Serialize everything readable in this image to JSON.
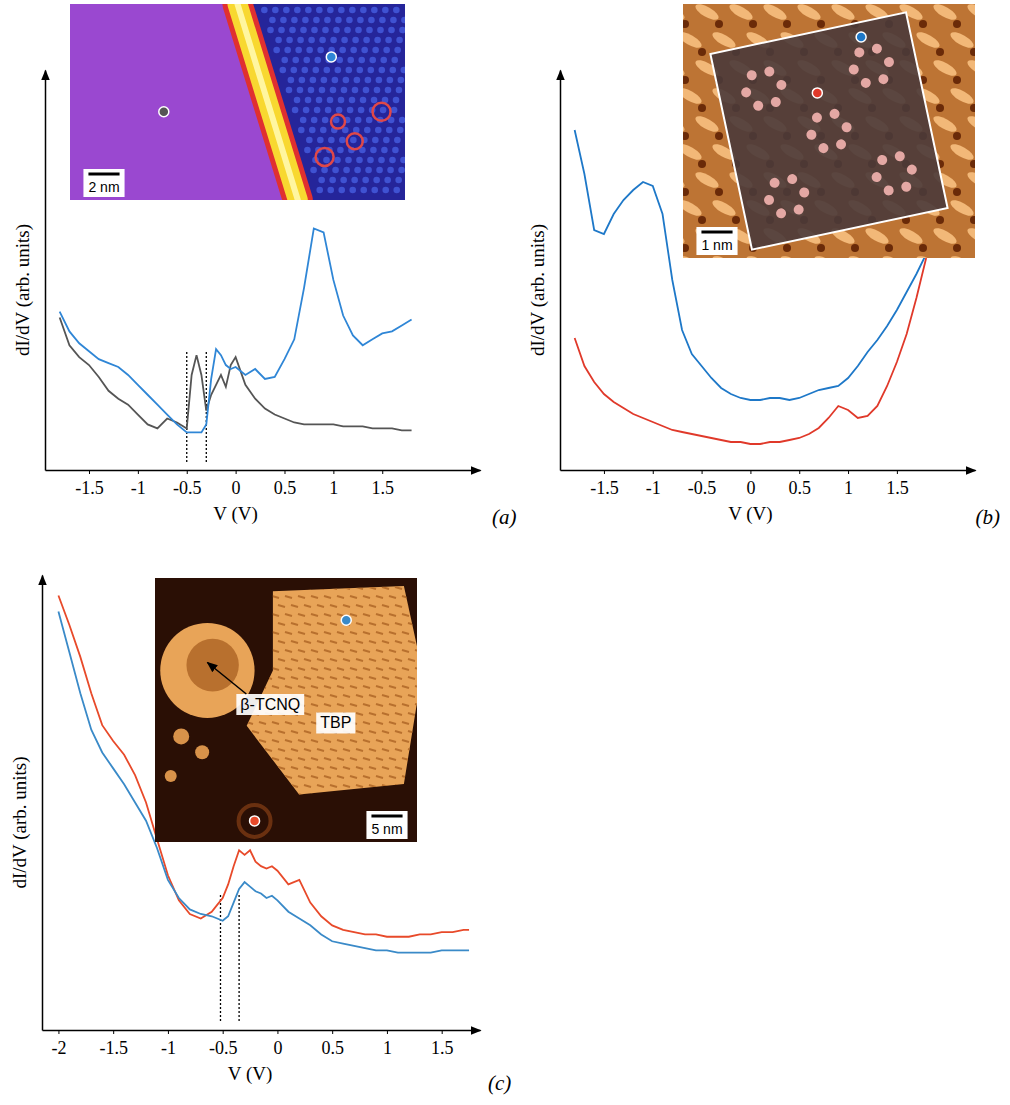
{
  "chart_data": [
    {
      "type": "line",
      "panel_label": "(a)",
      "x_label": "V (V)",
      "y_label": "dI/dV (arb. units)",
      "xlim": [
        -1.95,
        2.5
      ],
      "ylim": [
        0,
        10.1
      ],
      "xticks": [
        -1.5,
        -1,
        -0.5,
        0,
        0.5,
        1,
        1.5
      ],
      "tick_labels": "x",
      "x": [
        -1.8,
        -1.7,
        -1.6,
        -1.5,
        -1.4,
        -1.3,
        -1.2,
        -1.1,
        -1,
        -0.9,
        -0.8,
        -0.7,
        -0.6,
        -0.5,
        -0.45,
        -0.4,
        -0.35,
        -0.3,
        -0.25,
        -0.2,
        -0.15,
        -0.1,
        -0.05,
        0,
        0.1,
        0.2,
        0.3,
        0.4,
        0.5,
        0.6,
        0.7,
        0.8,
        0.9,
        1,
        1.1,
        1.2,
        1.3,
        1.4,
        1.5,
        1.6,
        1.7,
        1.8
      ],
      "series": [
        {
          "color": "#555555",
          "values": [
            3.85,
            3.15,
            2.85,
            2.65,
            2.35,
            2.0,
            1.8,
            1.65,
            1.4,
            1.15,
            1.05,
            1.3,
            1.2,
            1.05,
            2.4,
            2.9,
            2.4,
            1.5,
            1.9,
            2.15,
            2.4,
            2.1,
            2.65,
            2.85,
            2.15,
            1.8,
            1.55,
            1.4,
            1.3,
            1.2,
            1.15,
            1.15,
            1.15,
            1.15,
            1.1,
            1.1,
            1.1,
            1.05,
            1.05,
            1.05,
            1.0,
            1.0
          ]
        },
        {
          "color": "#2f86d6",
          "values": [
            4.0,
            3.5,
            3.2,
            3.0,
            2.8,
            2.7,
            2.6,
            2.4,
            2.15,
            1.9,
            1.65,
            1.4,
            1.15,
            0.95,
            0.95,
            0.95,
            0.95,
            1.15,
            2.3,
            3.05,
            2.9,
            2.65,
            2.55,
            2.6,
            2.4,
            2.55,
            2.3,
            2.35,
            2.8,
            3.3,
            4.6,
            6.1,
            6.0,
            4.8,
            3.9,
            3.4,
            3.15,
            3.3,
            3.45,
            3.5,
            3.65,
            3.8
          ]
        }
      ],
      "vlines": [
        -0.5,
        -0.3
      ],
      "inset": {
        "scale_bar": "2 nm"
      }
    },
    {
      "type": "line",
      "panel_label": "(b)",
      "x_label": "V (V)",
      "y_label": "dI/dV (arb. units)",
      "xlim": [
        -1.95,
        2.3
      ],
      "ylim": [
        0,
        10
      ],
      "xticks": [
        -1.5,
        -1,
        -0.5,
        0,
        0.5,
        1,
        1.5
      ],
      "tick_labels": "x",
      "x": [
        -1.8,
        -1.7,
        -1.6,
        -1.5,
        -1.4,
        -1.3,
        -1.2,
        -1.1,
        -1,
        -0.9,
        -0.8,
        -0.7,
        -0.6,
        -0.5,
        -0.4,
        -0.3,
        -0.2,
        -0.1,
        0,
        0.1,
        0.2,
        0.3,
        0.4,
        0.5,
        0.6,
        0.7,
        0.8,
        0.9,
        1,
        1.1,
        1.2,
        1.3,
        1.4,
        1.5,
        1.6,
        1.7,
        1.8
      ],
      "series": [
        {
          "color": "#1e78c8",
          "values": [
            8.5,
            7.4,
            6.0,
            5.9,
            6.4,
            6.75,
            7.0,
            7.2,
            7.1,
            6.4,
            4.75,
            3.5,
            2.9,
            2.6,
            2.3,
            2.05,
            1.9,
            1.8,
            1.75,
            1.75,
            1.8,
            1.8,
            1.75,
            1.8,
            1.9,
            2.0,
            2.05,
            2.1,
            2.3,
            2.6,
            2.95,
            3.25,
            3.6,
            4.0,
            4.45,
            4.9,
            5.4
          ]
        },
        {
          "color": "#e0392a",
          "values": [
            3.3,
            2.6,
            2.2,
            1.9,
            1.7,
            1.55,
            1.4,
            1.3,
            1.2,
            1.1,
            1.0,
            0.95,
            0.9,
            0.85,
            0.8,
            0.75,
            0.7,
            0.7,
            0.65,
            0.65,
            0.7,
            0.7,
            0.75,
            0.8,
            0.9,
            1.05,
            1.3,
            1.6,
            1.5,
            1.3,
            1.35,
            1.6,
            2.1,
            2.7,
            3.4,
            4.3,
            5.3
          ]
        }
      ],
      "inset": {
        "scale_bar": "1 nm"
      }
    },
    {
      "type": "line",
      "panel_label": "(c)",
      "x_label": "V (V)",
      "y_label": "dI/dV (arb. units)",
      "xlim": [
        -2.15,
        1.85
      ],
      "ylim": [
        0,
        10
      ],
      "xticks": [
        -2,
        -1.5,
        -1,
        -0.5,
        0,
        0.5,
        1,
        1.5
      ],
      "tick_labels": "x",
      "x": [
        -2,
        -1.9,
        -1.8,
        -1.7,
        -1.6,
        -1.5,
        -1.4,
        -1.3,
        -1.2,
        -1.1,
        -1,
        -0.9,
        -0.8,
        -0.7,
        -0.6,
        -0.55,
        -0.5,
        -0.45,
        -0.4,
        -0.35,
        -0.3,
        -0.25,
        -0.2,
        -0.15,
        -0.1,
        -0.05,
        0,
        0.1,
        0.2,
        0.3,
        0.4,
        0.5,
        0.6,
        0.7,
        0.8,
        0.9,
        1,
        1.1,
        1.2,
        1.3,
        1.4,
        1.5,
        1.6,
        1.7,
        1.75
      ],
      "series": [
        {
          "color": "#e84a2a",
          "values": [
            9.55,
            8.9,
            8.2,
            7.4,
            6.7,
            6.35,
            6.05,
            5.6,
            5.0,
            4.2,
            3.4,
            2.85,
            2.55,
            2.45,
            2.6,
            2.75,
            2.9,
            3.2,
            3.6,
            3.95,
            3.85,
            3.95,
            3.7,
            3.6,
            3.55,
            3.6,
            3.5,
            3.2,
            3.3,
            2.8,
            2.5,
            2.3,
            2.2,
            2.15,
            2.1,
            2.1,
            2.05,
            2.05,
            2.05,
            2.1,
            2.1,
            2.15,
            2.15,
            2.2,
            2.2
          ]
        },
        {
          "color": "#3a8ac8",
          "values": [
            9.2,
            8.3,
            7.4,
            6.6,
            6.1,
            5.75,
            5.4,
            5.0,
            4.6,
            4.0,
            3.3,
            2.9,
            2.65,
            2.55,
            2.5,
            2.45,
            2.4,
            2.5,
            2.8,
            3.1,
            3.25,
            3.15,
            3.05,
            3.0,
            2.9,
            2.95,
            2.85,
            2.6,
            2.45,
            2.3,
            2.1,
            1.95,
            1.9,
            1.85,
            1.8,
            1.75,
            1.75,
            1.7,
            1.7,
            1.7,
            1.7,
            1.75,
            1.75,
            1.75,
            1.75
          ]
        }
      ],
      "vlines": [
        -0.52,
        -0.35
      ],
      "inset": {
        "scale_bar": "5 nm",
        "labels": [
          "β-TCNQ",
          "TBP"
        ]
      }
    }
  ]
}
